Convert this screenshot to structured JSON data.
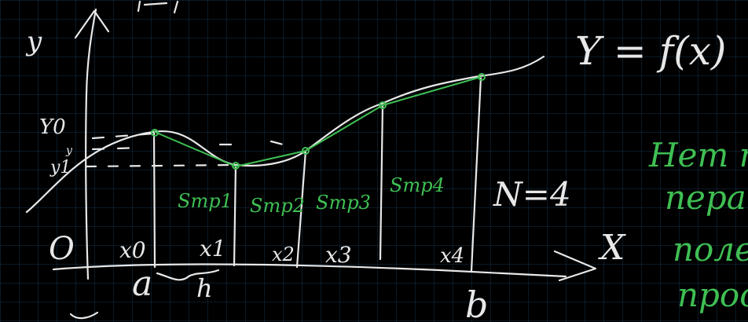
{
  "board": {
    "background": "#000000",
    "grid_color": "#16324a",
    "chalk_color": "#e8e8e8",
    "accent_color": "#3fbf53"
  },
  "labels": {
    "y_axis": "y",
    "x_axis": "X",
    "origin": "O",
    "function": "Y = f(x)",
    "n_value": "N=4",
    "a": "a",
    "b": "b",
    "h": "h",
    "y_partial": "y",
    "y0": "Y0",
    "y1": "y1",
    "x_points": [
      "x0",
      "x1",
      "x2",
      "x3",
      "x4"
    ],
    "areas": [
      "Sтр1",
      "Sтр2",
      "Sтр3",
      "Sтр4"
    ],
    "margin_notes": [
      "Нет п",
      "пера",
      "поле",
      "прост"
    ]
  }
}
